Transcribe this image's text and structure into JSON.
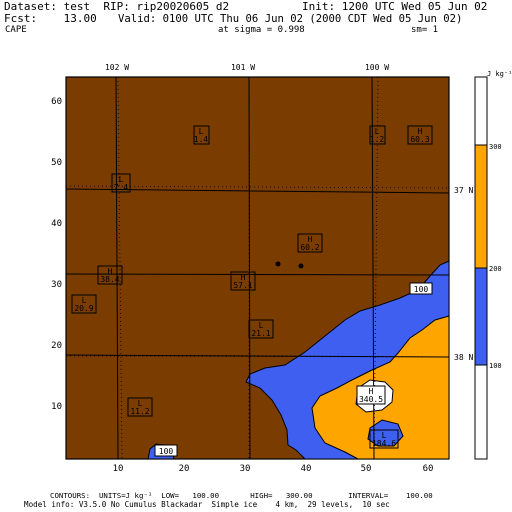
{
  "header": {
    "dataset": "Dataset: test  RIP: rip20020605 d2",
    "init": "Init: 1200 UTC Wed 05 Jun 02",
    "fcst": "Fcst:    13.00",
    "valid": "Valid: 0100 UTC Thu 06 Jun 02 (2000 CDT Wed 05 Jun 02)",
    "field": "CAPE",
    "sigma": "at sigma = 0.998",
    "sm": "sm= 1"
  },
  "longitudes": [
    "102 W",
    "101 W",
    "100 W"
  ],
  "latitudes": [
    "37 N",
    "38 N"
  ],
  "x_ticks": [
    "10",
    "20",
    "30",
    "40",
    "50",
    "60"
  ],
  "y_ticks": [
    "10",
    "20",
    "30",
    "40",
    "50",
    "60"
  ],
  "colorbar": {
    "unit": "J kg⁻¹",
    "labels": [
      "300",
      "200",
      "100"
    ],
    "colors": {
      "low": "#ffffff",
      "mid": "#3f5ff0",
      "high": "#ffa500",
      "top": "#ffffff"
    }
  },
  "colors": {
    "background_field": "#7b3c00",
    "blue_fill": "#3f5ff0",
    "orange_fill": "#ffa500"
  },
  "extrema": [
    {
      "type": "L",
      "value": "1.4"
    },
    {
      "type": "L",
      "value": "1.2"
    },
    {
      "type": "H",
      "value": "60.3"
    },
    {
      "type": "L",
      "value": "7.4"
    },
    {
      "type": "H",
      "value": "60.2"
    },
    {
      "type": "H",
      "value": "38.4"
    },
    {
      "type": "H",
      "value": "57.1"
    },
    {
      "type": "L",
      "value": "20.9"
    },
    {
      "type": "L",
      "value": "21.1"
    },
    {
      "type": "L",
      "value": "11.2"
    },
    {
      "type": "H",
      "value": "340.5"
    },
    {
      "type": "L",
      "value": "184.6"
    }
  ],
  "contour_labels": [
    "100",
    "100"
  ],
  "footer": {
    "line1": "CONTOURS:  UNITS=J kg⁻¹  LOW=   100.00       HIGH=   300.00        INTERVAL=    100.00",
    "line2": "Model info: V3.5.0 No Cumulus Blackadar  Simple ice    4 km,  29 levels,  10 sec"
  }
}
